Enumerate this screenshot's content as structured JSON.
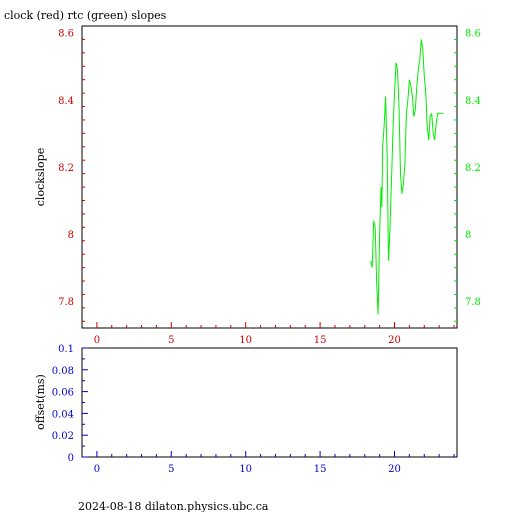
{
  "title": "clock (red) rtc (green) slopes",
  "footer": "2024-08-18  dilaton.physics.ubc.ca",
  "colors": {
    "red": "#cc0000",
    "green": "#00ee00",
    "blue": "#0000cc",
    "black": "#000000"
  },
  "chart_data": [
    {
      "type": "line",
      "title": "clock (red) rtc (green) slopes",
      "ylabel": "clockslope",
      "xlim": [
        -1,
        24.2
      ],
      "ylim": [
        7.72,
        8.62
      ],
      "xticks": [
        0,
        5,
        10,
        15,
        20
      ],
      "xtick_labels": [
        "0",
        "5",
        "10",
        "15",
        "20"
      ],
      "yticks": [
        7.8,
        8,
        8.2,
        8.4,
        8.6
      ],
      "ytick_labels_left": [
        "7.8",
        "8",
        "8.2",
        "8.4",
        "8.6"
      ],
      "ytick_labels_right": [
        "7.8",
        "8",
        "8.2",
        "8.4",
        "8.6"
      ],
      "grid": false,
      "series": [
        {
          "color": "green",
          "x": [
            18.4,
            18.5,
            18.6,
            18.7,
            18.8,
            18.9,
            19.0,
            19.1,
            19.15,
            19.2,
            19.3,
            19.4,
            19.5,
            19.6,
            19.7,
            19.8,
            19.9,
            20.0,
            20.1,
            20.2,
            20.3,
            20.4,
            20.5,
            20.6,
            20.7,
            20.8,
            20.9,
            21.0,
            21.1,
            21.2,
            21.3,
            21.4,
            21.5,
            21.6,
            21.7,
            21.8,
            21.9,
            22.0,
            22.1,
            22.2,
            22.3,
            22.4,
            22.5,
            22.6,
            22.7,
            22.8,
            22.9,
            23.0,
            23.1,
            23.2,
            23.3
          ],
          "y": [
            7.92,
            7.9,
            8.04,
            8.02,
            7.86,
            7.76,
            8.0,
            8.14,
            8.08,
            8.26,
            8.32,
            8.41,
            8.24,
            7.92,
            8.02,
            8.16,
            8.31,
            8.42,
            8.51,
            8.49,
            8.38,
            8.18,
            8.12,
            8.15,
            8.21,
            8.36,
            8.4,
            8.46,
            8.44,
            8.41,
            8.35,
            8.37,
            8.44,
            8.49,
            8.52,
            8.58,
            8.55,
            8.47,
            8.42,
            8.32,
            8.28,
            8.35,
            8.36,
            8.3,
            8.28,
            8.33,
            8.36,
            8.36,
            8.36,
            8.36,
            8.36
          ]
        }
      ]
    },
    {
      "type": "line",
      "ylabel": "offset(ms)",
      "xlim": [
        -1,
        24.2
      ],
      "ylim": [
        0,
        0.1
      ],
      "xticks": [
        0,
        5,
        10,
        15,
        20
      ],
      "xtick_labels": [
        "0",
        "5",
        "10",
        "15",
        "20"
      ],
      "yticks": [
        0,
        0.02,
        0.04,
        0.06,
        0.08,
        0.1
      ],
      "ytick_labels": [
        "0",
        "0.02",
        "0.04",
        "0.06",
        "0.08",
        "0.1"
      ],
      "grid": false,
      "series": []
    }
  ]
}
